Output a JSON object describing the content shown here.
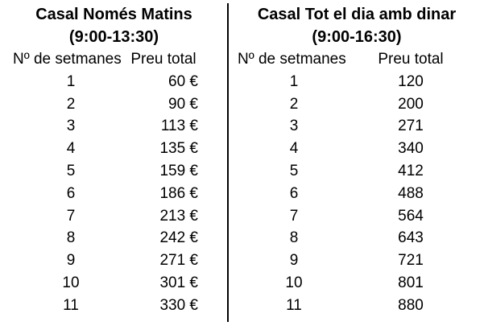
{
  "colors": {
    "text": "#000000",
    "background": "#ffffff",
    "divider": "#000000"
  },
  "tables": [
    {
      "title_line1": "Casal Només Matins",
      "title_line2": "(9:00-13:30)",
      "col_headers": [
        "Nº de setmanes",
        "Preu total"
      ],
      "rows": [
        {
          "weeks": "1",
          "price": "60 €"
        },
        {
          "weeks": "2",
          "price": "90 €"
        },
        {
          "weeks": "3",
          "price": "113 €"
        },
        {
          "weeks": "4",
          "price": "135 €"
        },
        {
          "weeks": "5",
          "price": "159 €"
        },
        {
          "weeks": "6",
          "price": "186 €"
        },
        {
          "weeks": "7",
          "price": "213 €"
        },
        {
          "weeks": "8",
          "price": "242 €"
        },
        {
          "weeks": "9",
          "price": "271 €"
        },
        {
          "weeks": "10",
          "price": "301 €"
        },
        {
          "weeks": "11",
          "price": "330 €"
        }
      ]
    },
    {
      "title_line1": "Casal Tot el dia amb dinar",
      "title_line2": "(9:00-16:30)",
      "col_headers": [
        "Nº de setmanes",
        "Preu total"
      ],
      "rows": [
        {
          "weeks": "1",
          "price": "120"
        },
        {
          "weeks": "2",
          "price": "200"
        },
        {
          "weeks": "3",
          "price": "271"
        },
        {
          "weeks": "4",
          "price": "340"
        },
        {
          "weeks": "5",
          "price": "412"
        },
        {
          "weeks": "6",
          "price": "488"
        },
        {
          "weeks": "7",
          "price": "564"
        },
        {
          "weeks": "8",
          "price": "643"
        },
        {
          "weeks": "9",
          "price": "721"
        },
        {
          "weeks": "10",
          "price": "801"
        },
        {
          "weeks": "11",
          "price": "880"
        }
      ]
    }
  ]
}
